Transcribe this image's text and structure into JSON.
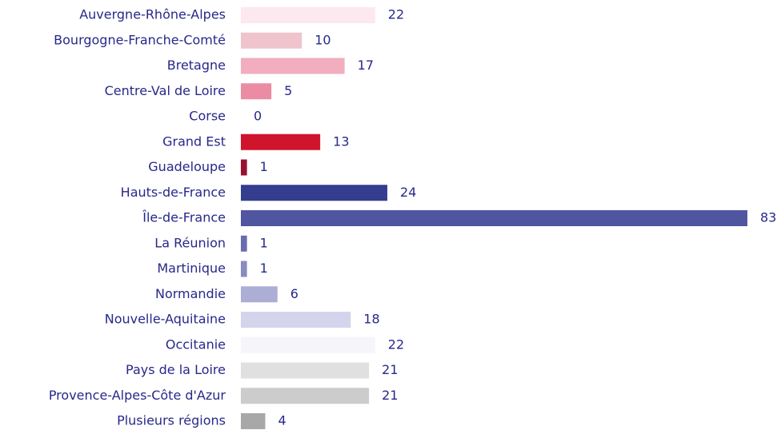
{
  "chart_data": {
    "type": "hbar",
    "categories": [
      "Auvergne-Rhône-Alpes",
      "Bourgogne-Franche-Comté",
      "Bretagne",
      "Centre-Val de Loire",
      "Corse",
      "Grand Est",
      "Guadeloupe",
      "Hauts-de-France",
      "Île-de-France",
      "La Réunion",
      "Martinique",
      "Normandie",
      "Nouvelle-Aquitaine",
      "Occitanie",
      "Pays de la Loire",
      "Provence-Alpes-Côte d'Azur",
      "Plusieurs régions"
    ],
    "values": [
      22,
      10,
      17,
      5,
      0,
      13,
      1,
      24,
      83,
      1,
      1,
      6,
      18,
      22,
      21,
      21,
      4
    ],
    "colors": [
      "#fce8ee",
      "#f0c4cc",
      "#f2aebf",
      "#eb8ca4",
      "#e0607f",
      "#d0142c",
      "#9a1030",
      "#353d8f",
      "#5055a0",
      "#6a6cb0",
      "#8a8cc0",
      "#adaed6",
      "#d4d4ec",
      "#f5f5fa",
      "#e0e0e0",
      "#cccccc",
      "#a8a8a8"
    ]
  }
}
